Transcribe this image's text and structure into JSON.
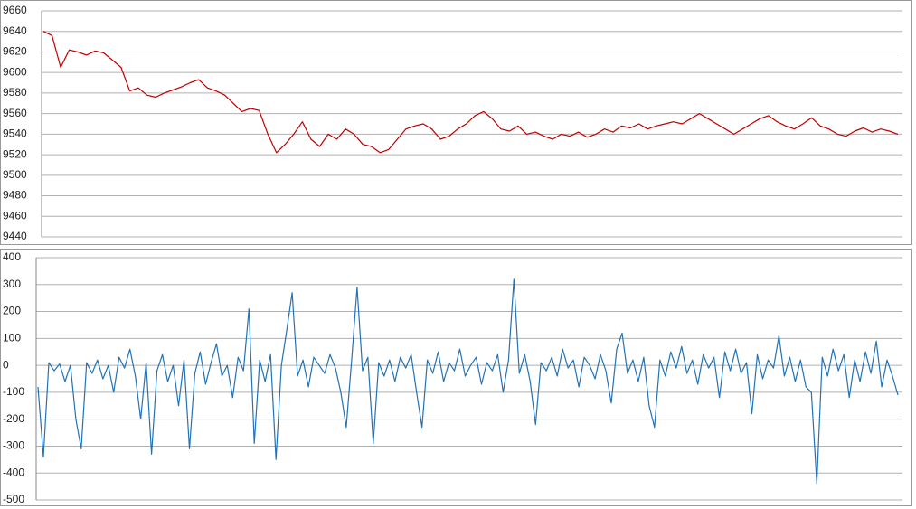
{
  "chart_data": [
    {
      "type": "line",
      "ylim": [
        9440,
        9660
      ],
      "yticks": [
        9440,
        9460,
        9480,
        9500,
        9520,
        9540,
        9560,
        9580,
        9600,
        9620,
        9640,
        9660
      ],
      "grid": true,
      "series": [
        {
          "color": "#c00000",
          "values": [
            9640,
            9636,
            9605,
            9622,
            9620,
            9617,
            9621,
            9619,
            9612,
            9605,
            9582,
            9585,
            9578,
            9576,
            9580,
            9583,
            9586,
            9590,
            9593,
            9585,
            9582,
            9578,
            9570,
            9562,
            9565,
            9563,
            9540,
            9522,
            9530,
            9540,
            9552,
            9535,
            9528,
            9540,
            9535,
            9545,
            9540,
            9530,
            9528,
            9522,
            9525,
            9535,
            9545,
            9548,
            9550,
            9545,
            9535,
            9538,
            9545,
            9550,
            9558,
            9562,
            9555,
            9545,
            9543,
            9548,
            9540,
            9542,
            9538,
            9535,
            9540,
            9538,
            9542,
            9537,
            9540,
            9545,
            9542,
            9548,
            9546,
            9550,
            9545,
            9548,
            9550,
            9552,
            9550,
            9555,
            9560,
            9555,
            9550,
            9545,
            9540,
            9545,
            9550,
            9555,
            9558,
            9552,
            9548,
            9545,
            9550,
            9556,
            9548,
            9545,
            9540,
            9538,
            9543,
            9546,
            9542,
            9545,
            9543,
            9540
          ]
        }
      ]
    },
    {
      "type": "line",
      "ylim": [
        -500,
        400
      ],
      "yticks": [
        -500,
        -400,
        -300,
        -200,
        -100,
        0,
        100,
        200,
        300,
        400
      ],
      "grid": true,
      "series": [
        {
          "color": "#2272b4",
          "values": [
            -80,
            -340,
            10,
            -20,
            5,
            -60,
            0,
            -200,
            -310,
            10,
            -30,
            20,
            -50,
            0,
            -100,
            30,
            -10,
            60,
            -40,
            -200,
            10,
            -330,
            -20,
            40,
            -60,
            0,
            -150,
            20,
            -310,
            -30,
            50,
            -70,
            10,
            80,
            -40,
            0,
            -120,
            30,
            -20,
            210,
            -290,
            20,
            -60,
            40,
            -350,
            0,
            130,
            270,
            -40,
            20,
            -80,
            30,
            0,
            -30,
            40,
            -10,
            -100,
            -230,
            20,
            290,
            -20,
            30,
            -290,
            10,
            -40,
            20,
            -60,
            30,
            -10,
            40,
            -100,
            -230,
            20,
            -30,
            50,
            -60,
            10,
            -20,
            60,
            -40,
            0,
            30,
            -70,
            10,
            -20,
            40,
            -100,
            20,
            320,
            -30,
            40,
            -60,
            -220,
            10,
            -20,
            30,
            -40,
            60,
            -10,
            20,
            -80,
            30,
            0,
            -50,
            40,
            -20,
            -140,
            60,
            120,
            -30,
            20,
            -60,
            30,
            -150,
            -230,
            20,
            -40,
            50,
            -10,
            70,
            -30,
            20,
            -70,
            40,
            -10,
            30,
            -120,
            50,
            -20,
            60,
            -30,
            10,
            -180,
            40,
            -50,
            20,
            -10,
            110,
            -40,
            30,
            -60,
            20,
            -80,
            -100,
            -440,
            30,
            -40,
            60,
            -20,
            40,
            -120,
            20,
            -60,
            50,
            -30,
            90,
            -80,
            20,
            -40,
            -110
          ]
        }
      ]
    }
  ]
}
